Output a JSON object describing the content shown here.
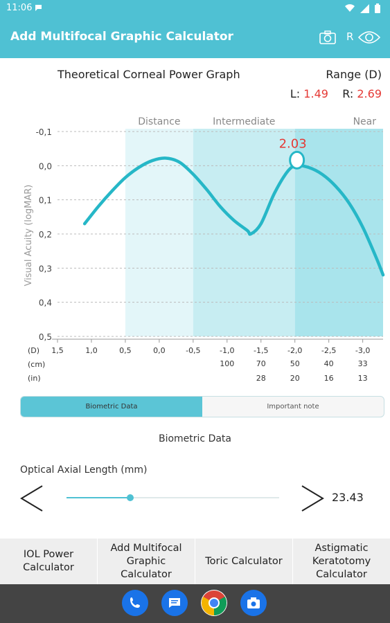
{
  "status_bar": {
    "time": "11:06"
  },
  "app_bar": {
    "title": "Add Multifocal Graphic Calculator",
    "r_label": "R"
  },
  "graph": {
    "title": "Theoretical Corneal Power Graph",
    "range_label": "Range (D)",
    "left_prefix": "L:",
    "left_value": "1.49",
    "right_prefix": "R:",
    "right_value": "2.69",
    "peak_label": "2.03"
  },
  "chart_data": {
    "type": "line",
    "ylabel": "Visual Acuity (logMAR)",
    "y_tick_labels": [
      "-0,1",
      "0,0",
      "0,1",
      "0,2",
      "0,3",
      "0,4",
      "0,5"
    ],
    "ylim": [
      0.5,
      -0.1
    ],
    "x_row_labels": [
      "(D)",
      "(cm)",
      "(in)"
    ],
    "x_ticks_d": [
      "1,5",
      "1,0",
      "0,5",
      "0,0",
      "-0,5",
      "-1,0",
      "-1,5",
      "-2,0",
      "-2,5",
      "-3,0"
    ],
    "x_ticks_cm": [
      "",
      "",
      "",
      "",
      "",
      "100",
      "70",
      "50",
      "40",
      "33"
    ],
    "x_ticks_in": [
      "",
      "",
      "",
      "",
      "",
      "",
      "28",
      "20",
      "16",
      "13"
    ],
    "xlim": [
      1.5,
      -3.3
    ],
    "zones": [
      "Distance",
      "Intermediate",
      "Near"
    ],
    "zone_ranges": [
      [
        0.5,
        -0.5
      ],
      [
        -0.5,
        -2.0
      ],
      [
        -2.0,
        -3.3
      ]
    ],
    "series": [
      {
        "x": [
          1.1,
          0.9,
          0.7,
          0.5,
          0.3,
          0.1,
          -0.1,
          -0.3,
          -0.5,
          -0.7,
          -0.9,
          -1.1,
          -1.3,
          -1.35,
          -1.5,
          -1.7,
          -1.9,
          -2.03,
          -2.2,
          -2.4,
          -2.6,
          -2.8,
          -3.0,
          -3.2,
          -3.3
        ],
        "y": [
          0.17,
          0.12,
          0.075,
          0.035,
          0.005,
          -0.015,
          -0.022,
          -0.01,
          0.025,
          0.07,
          0.12,
          0.16,
          0.19,
          0.2,
          0.17,
          0.08,
          0.015,
          0.0,
          0.005,
          0.025,
          0.06,
          0.11,
          0.18,
          0.27,
          0.32
        ]
      }
    ],
    "marker": {
      "x": -2.03,
      "y": 0.0,
      "label": "2.03"
    },
    "colors": {
      "line": "#26b7c7",
      "zone_distance": "#e3f6f9",
      "zone_intermediate": "#c7edf2",
      "zone_near": "#a9e4ec",
      "peak_label": "#e53935"
    }
  },
  "data_tabs": {
    "tab1": "Biometric Data",
    "tab2": "Important note"
  },
  "biometric": {
    "section_title": "Biometric Data",
    "field_label": "Optical Axial Length (mm)",
    "value": "23.43",
    "slider_fraction": 0.3
  },
  "bottom_tabs": [
    "IOL Power\nCalculator",
    "Add Multifocal\nGraphic\nCalculator",
    "Toric Calculator",
    "Astigmatic\nKeratotomy\nCalculator"
  ],
  "dock_icons": [
    "phone-icon",
    "messages-icon",
    "chrome-icon",
    "camera-icon"
  ],
  "colors": {
    "accent": "#4fc1d3",
    "red": "#e53935"
  }
}
